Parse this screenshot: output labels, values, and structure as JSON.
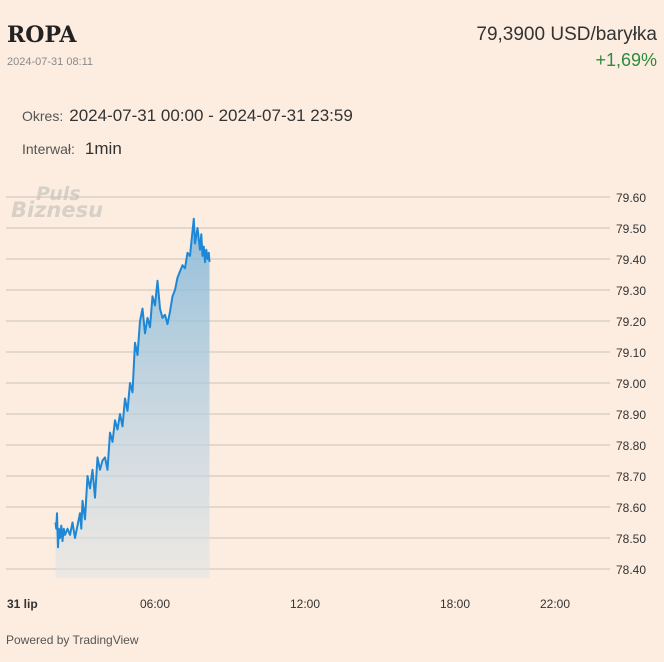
{
  "header": {
    "title": "ROPA",
    "timestamp": "2024-07-31 08:11",
    "price": "79,3900 USD/baryłka",
    "change": "+1,69%"
  },
  "info": {
    "period_label": "Okres:",
    "period_value": "2024-07-31 00:00 - 2024-07-31 23:59",
    "interval_label": "Interwał:",
    "interval_value": "1min"
  },
  "watermark": {
    "line1": "Puls",
    "line2": "Biznesu"
  },
  "footer": "Powered by TradingView",
  "colors": {
    "line": "#1e88d6",
    "up": "#2e8b3d",
    "background": "#fcede0",
    "grid": "#c8c2bc"
  },
  "chart_data": {
    "type": "area",
    "x_ticks": [
      {
        "label": "31 lip",
        "hour": 0
      },
      {
        "label": "06:00",
        "hour": 6
      },
      {
        "label": "12:00",
        "hour": 12
      },
      {
        "label": "18:00",
        "hour": 18
      },
      {
        "label": "22:00",
        "hour": 22
      }
    ],
    "y_ticks": [
      "79.60",
      "79.50",
      "79.40",
      "79.30",
      "79.20",
      "79.10",
      "79.00",
      "78.90",
      "78.80",
      "78.70",
      "78.60",
      "78.50",
      "78.40"
    ],
    "ylim": [
      78.4,
      79.6
    ],
    "x_range_hours": [
      0,
      24
    ],
    "grid": true,
    "axis_position": "right",
    "series": [
      {
        "x_hours": [
          2.02,
          2.05,
          2.08,
          2.12,
          2.15,
          2.2,
          2.25,
          2.3,
          2.35,
          2.4,
          2.5,
          2.6,
          2.7,
          2.8,
          2.9,
          3.0,
          3.05,
          3.1,
          3.2,
          3.3,
          3.4,
          3.5,
          3.6,
          3.7,
          3.8,
          3.9,
          4.0,
          4.1,
          4.2,
          4.3,
          4.4,
          4.5,
          4.6,
          4.7,
          4.8,
          4.9,
          5.0,
          5.1,
          5.2,
          5.3,
          5.4,
          5.5,
          5.6,
          5.7,
          5.8,
          5.9,
          6.0,
          6.1,
          6.2,
          6.3,
          6.4,
          6.5,
          6.6,
          6.7,
          6.8,
          6.9,
          7.0,
          7.1,
          7.2,
          7.3,
          7.4,
          7.5,
          7.55,
          7.6,
          7.7,
          7.8,
          7.85,
          7.9,
          7.95,
          8.0,
          8.05,
          8.1,
          8.15,
          8.18
        ],
        "values": [
          78.55,
          78.53,
          78.58,
          78.47,
          78.53,
          78.5,
          78.54,
          78.49,
          78.53,
          78.51,
          78.53,
          78.51,
          78.55,
          78.5,
          78.54,
          78.58,
          78.53,
          78.62,
          78.56,
          78.7,
          78.66,
          78.72,
          78.63,
          78.76,
          78.72,
          78.75,
          78.76,
          78.72,
          78.84,
          78.81,
          78.88,
          78.85,
          78.9,
          78.86,
          78.95,
          78.91,
          79.0,
          78.97,
          79.13,
          79.09,
          79.2,
          79.24,
          79.16,
          79.21,
          79.18,
          79.28,
          79.25,
          79.33,
          79.24,
          79.21,
          79.22,
          79.19,
          79.23,
          79.28,
          79.3,
          79.34,
          79.36,
          79.38,
          79.37,
          79.42,
          79.41,
          79.49,
          79.53,
          79.45,
          79.5,
          79.43,
          79.48,
          79.41,
          79.44,
          79.39,
          79.43,
          79.4,
          79.42,
          79.39
        ]
      }
    ]
  }
}
